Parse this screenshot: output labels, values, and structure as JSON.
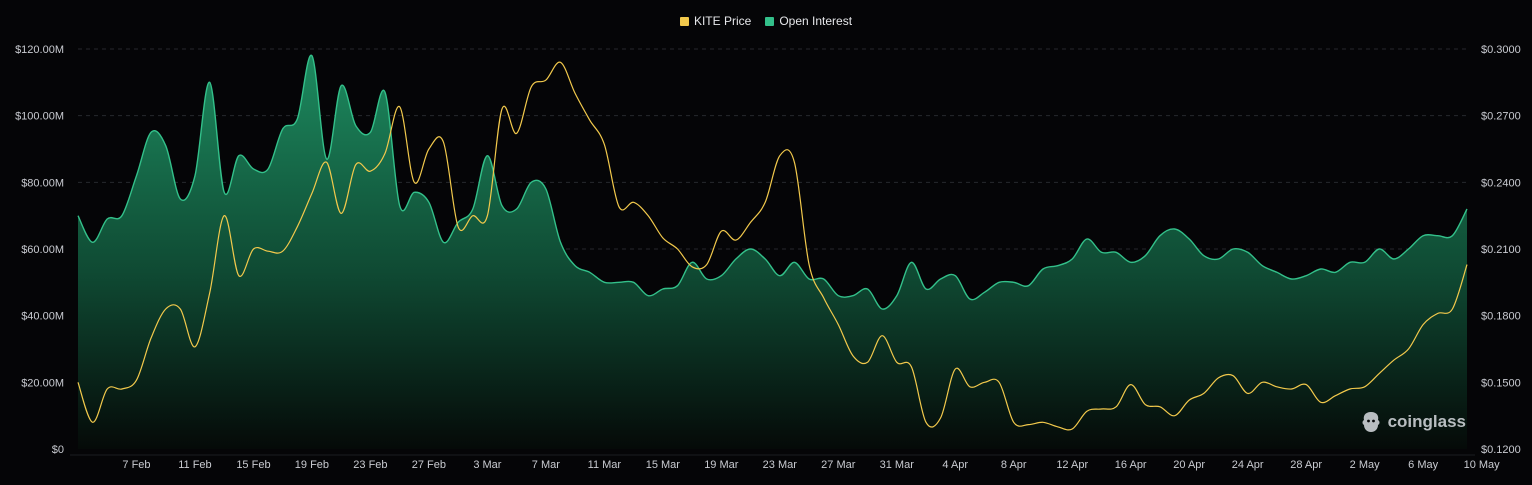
{
  "legend": {
    "price_label": "KITE Price",
    "oi_label": "Open Interest"
  },
  "colors": {
    "background": "#050507",
    "price": "#f2c94c",
    "oi_line": "#33c08a",
    "oi_fill_top": "#1d8a5f",
    "oi_fill_bottom": "#050a08",
    "grid": "#26282e",
    "axis_text": "#c9cbd1"
  },
  "watermark": {
    "text": "coinglass",
    "icon": "coinglass-logo-icon"
  },
  "chart_data": {
    "type": "area",
    "title": "",
    "x_tick_labels": [
      "7 Feb",
      "11 Feb",
      "15 Feb",
      "19 Feb",
      "23 Feb",
      "27 Feb",
      "3 Mar",
      "7 Mar",
      "11 Mar",
      "15 Mar",
      "19 Mar",
      "23 Mar",
      "27 Mar",
      "31 Mar",
      "4 Apr",
      "8 Apr",
      "12 Apr",
      "16 Apr",
      "20 Apr",
      "24 Apr",
      "28 Apr",
      "2 May",
      "6 May",
      "10 May"
    ],
    "y_left": {
      "label": "Open Interest",
      "ticks": [
        "$0",
        "$20.00M",
        "$40.00M",
        "$60.00M",
        "$80.00M",
        "$100.00M",
        "$120.00M"
      ],
      "range": [
        0,
        120
      ]
    },
    "y_right": {
      "label": "KITE Price",
      "ticks": [
        "$0.1200",
        "$0.1500",
        "$0.1800",
        "$0.2100",
        "$0.2400",
        "$0.2700",
        "$0.3000"
      ],
      "range": [
        0.12,
        0.3
      ]
    },
    "grid": true,
    "legend_position": "top-center",
    "series": [
      {
        "name": "Open Interest",
        "axis": "left",
        "unit": "USD millions",
        "points": [
          [
            "3 Feb",
            70
          ],
          [
            "4 Feb",
            62
          ],
          [
            "5 Feb",
            69
          ],
          [
            "6 Feb",
            70
          ],
          [
            "7 Feb",
            82
          ],
          [
            "8 Feb",
            95
          ],
          [
            "9 Feb",
            91
          ],
          [
            "10 Feb",
            75
          ],
          [
            "11 Feb",
            82
          ],
          [
            "12 Feb",
            110
          ],
          [
            "13 Feb",
            77
          ],
          [
            "14 Feb",
            88
          ],
          [
            "15 Feb",
            84
          ],
          [
            "16 Feb",
            84
          ],
          [
            "17 Feb",
            96
          ],
          [
            "18 Feb",
            99
          ],
          [
            "19 Feb",
            118
          ],
          [
            "20 Feb",
            87
          ],
          [
            "21 Feb",
            109
          ],
          [
            "22 Feb",
            97
          ],
          [
            "23 Feb",
            95
          ],
          [
            "24 Feb",
            107
          ],
          [
            "25 Feb",
            73
          ],
          [
            "26 Feb",
            77
          ],
          [
            "27 Feb",
            74
          ],
          [
            "28 Feb",
            62
          ],
          [
            "1 Mar",
            68
          ],
          [
            "2 Mar",
            72
          ],
          [
            "3 Mar",
            88
          ],
          [
            "4 Mar",
            73
          ],
          [
            "5 Mar",
            72
          ],
          [
            "6 Mar",
            80
          ],
          [
            "7 Mar",
            78
          ],
          [
            "8 Mar",
            62
          ],
          [
            "9 Mar",
            55
          ],
          [
            "10 Mar",
            53
          ],
          [
            "11 Mar",
            50
          ],
          [
            "12 Mar",
            50
          ],
          [
            "13 Mar",
            50
          ],
          [
            "14 Mar",
            46
          ],
          [
            "15 Mar",
            48
          ],
          [
            "16 Mar",
            49
          ],
          [
            "17 Mar",
            56
          ],
          [
            "18 Mar",
            51
          ],
          [
            "19 Mar",
            52
          ],
          [
            "20 Mar",
            57
          ],
          [
            "21 Mar",
            60
          ],
          [
            "22 Mar",
            57
          ],
          [
            "23 Mar",
            52
          ],
          [
            "24 Mar",
            56
          ],
          [
            "25 Mar",
            51
          ],
          [
            "26 Mar",
            51
          ],
          [
            "27 Mar",
            46
          ],
          [
            "28 Mar",
            46
          ],
          [
            "29 Mar",
            48
          ],
          [
            "30 Mar",
            42
          ],
          [
            "31 Mar",
            46
          ],
          [
            "1 Apr",
            56
          ],
          [
            "2 Apr",
            48
          ],
          [
            "3 Apr",
            51
          ],
          [
            "4 Apr",
            52
          ],
          [
            "5 Apr",
            45
          ],
          [
            "6 Apr",
            47
          ],
          [
            "7 Apr",
            50
          ],
          [
            "8 Apr",
            50
          ],
          [
            "9 Apr",
            49
          ],
          [
            "10 Apr",
            54
          ],
          [
            "11 Apr",
            55
          ],
          [
            "12 Apr",
            57
          ],
          [
            "13 Apr",
            63
          ],
          [
            "14 Apr",
            59
          ],
          [
            "15 Apr",
            59
          ],
          [
            "16 Apr",
            56
          ],
          [
            "17 Apr",
            58
          ],
          [
            "18 Apr",
            64
          ],
          [
            "19 Apr",
            66
          ],
          [
            "20 Apr",
            63
          ],
          [
            "21 Apr",
            58
          ],
          [
            "22 Apr",
            57
          ],
          [
            "23 Apr",
            60
          ],
          [
            "24 Apr",
            59
          ],
          [
            "25 Apr",
            55
          ],
          [
            "26 Apr",
            53
          ],
          [
            "27 Apr",
            51
          ],
          [
            "28 Apr",
            52
          ],
          [
            "29 Apr",
            54
          ],
          [
            "30 Apr",
            53
          ],
          [
            "1 May",
            56
          ],
          [
            "2 May",
            56
          ],
          [
            "3 May",
            60
          ],
          [
            "4 May",
            57
          ],
          [
            "5 May",
            60
          ],
          [
            "6 May",
            64
          ],
          [
            "7 May",
            64
          ],
          [
            "8 May",
            64
          ],
          [
            "9 May",
            72
          ]
        ]
      },
      {
        "name": "KITE Price",
        "axis": "right",
        "unit": "USD",
        "points": [
          [
            "3 Feb",
            0.15
          ],
          [
            "4 Feb",
            0.132
          ],
          [
            "5 Feb",
            0.147
          ],
          [
            "6 Feb",
            0.147
          ],
          [
            "7 Feb",
            0.151
          ],
          [
            "8 Feb",
            0.17
          ],
          [
            "9 Feb",
            0.183
          ],
          [
            "10 Feb",
            0.183
          ],
          [
            "11 Feb",
            0.166
          ],
          [
            "12 Feb",
            0.19
          ],
          [
            "13 Feb",
            0.225
          ],
          [
            "14 Feb",
            0.198
          ],
          [
            "15 Feb",
            0.21
          ],
          [
            "16 Feb",
            0.209
          ],
          [
            "17 Feb",
            0.209
          ],
          [
            "18 Feb",
            0.22
          ],
          [
            "19 Feb",
            0.235
          ],
          [
            "20 Feb",
            0.249
          ],
          [
            "21 Feb",
            0.226
          ],
          [
            "22 Feb",
            0.248
          ],
          [
            "23 Feb",
            0.245
          ],
          [
            "24 Feb",
            0.253
          ],
          [
            "25 Feb",
            0.274
          ],
          [
            "26 Feb",
            0.24
          ],
          [
            "27 Feb",
            0.255
          ],
          [
            "28 Feb",
            0.258
          ],
          [
            "1 Mar",
            0.22
          ],
          [
            "2 Mar",
            0.225
          ],
          [
            "3 Mar",
            0.225
          ],
          [
            "4 Mar",
            0.273
          ],
          [
            "5 Mar",
            0.262
          ],
          [
            "6 Mar",
            0.283
          ],
          [
            "7 Mar",
            0.286
          ],
          [
            "8 Mar",
            0.294
          ],
          [
            "9 Mar",
            0.28
          ],
          [
            "10 Mar",
            0.268
          ],
          [
            "11 Mar",
            0.257
          ],
          [
            "12 Mar",
            0.229
          ],
          [
            "13 Mar",
            0.231
          ],
          [
            "14 Mar",
            0.225
          ],
          [
            "15 Mar",
            0.215
          ],
          [
            "16 Mar",
            0.21
          ],
          [
            "17 Mar",
            0.202
          ],
          [
            "18 Mar",
            0.203
          ],
          [
            "19 Mar",
            0.218
          ],
          [
            "20 Mar",
            0.214
          ],
          [
            "21 Mar",
            0.222
          ],
          [
            "22 Mar",
            0.231
          ],
          [
            "23 Mar",
            0.252
          ],
          [
            "24 Mar",
            0.249
          ],
          [
            "25 Mar",
            0.203
          ],
          [
            "26 Mar",
            0.188
          ],
          [
            "27 Mar",
            0.176
          ],
          [
            "28 Mar",
            0.162
          ],
          [
            "29 Mar",
            0.159
          ],
          [
            "30 Mar",
            0.171
          ],
          [
            "31 Mar",
            0.159
          ],
          [
            "1 Apr",
            0.157
          ],
          [
            "2 Apr",
            0.132
          ],
          [
            "3 Apr",
            0.134
          ],
          [
            "4 Apr",
            0.156
          ],
          [
            "5 Apr",
            0.148
          ],
          [
            "6 Apr",
            0.15
          ],
          [
            "7 Apr",
            0.15
          ],
          [
            "8 Apr",
            0.132
          ],
          [
            "9 Apr",
            0.131
          ],
          [
            "10 Apr",
            0.132
          ],
          [
            "11 Apr",
            0.13
          ],
          [
            "12 Apr",
            0.129
          ],
          [
            "13 Apr",
            0.137
          ],
          [
            "14 Apr",
            0.138
          ],
          [
            "15 Apr",
            0.139
          ],
          [
            "16 Apr",
            0.149
          ],
          [
            "17 Apr",
            0.14
          ],
          [
            "18 Apr",
            0.139
          ],
          [
            "19 Apr",
            0.135
          ],
          [
            "20 Apr",
            0.142
          ],
          [
            "21 Apr",
            0.145
          ],
          [
            "22 Apr",
            0.152
          ],
          [
            "23 Apr",
            0.153
          ],
          [
            "24 Apr",
            0.145
          ],
          [
            "25 Apr",
            0.15
          ],
          [
            "26 Apr",
            0.148
          ],
          [
            "27 Apr",
            0.147
          ],
          [
            "28 Apr",
            0.149
          ],
          [
            "29 Apr",
            0.141
          ],
          [
            "30 Apr",
            0.144
          ],
          [
            "1 May",
            0.147
          ],
          [
            "2 May",
            0.148
          ],
          [
            "3 May",
            0.154
          ],
          [
            "4 May",
            0.16
          ],
          [
            "5 May",
            0.165
          ],
          [
            "6 May",
            0.176
          ],
          [
            "7 May",
            0.181
          ],
          [
            "8 May",
            0.183
          ],
          [
            "9 May",
            0.203
          ]
        ]
      }
    ]
  }
}
